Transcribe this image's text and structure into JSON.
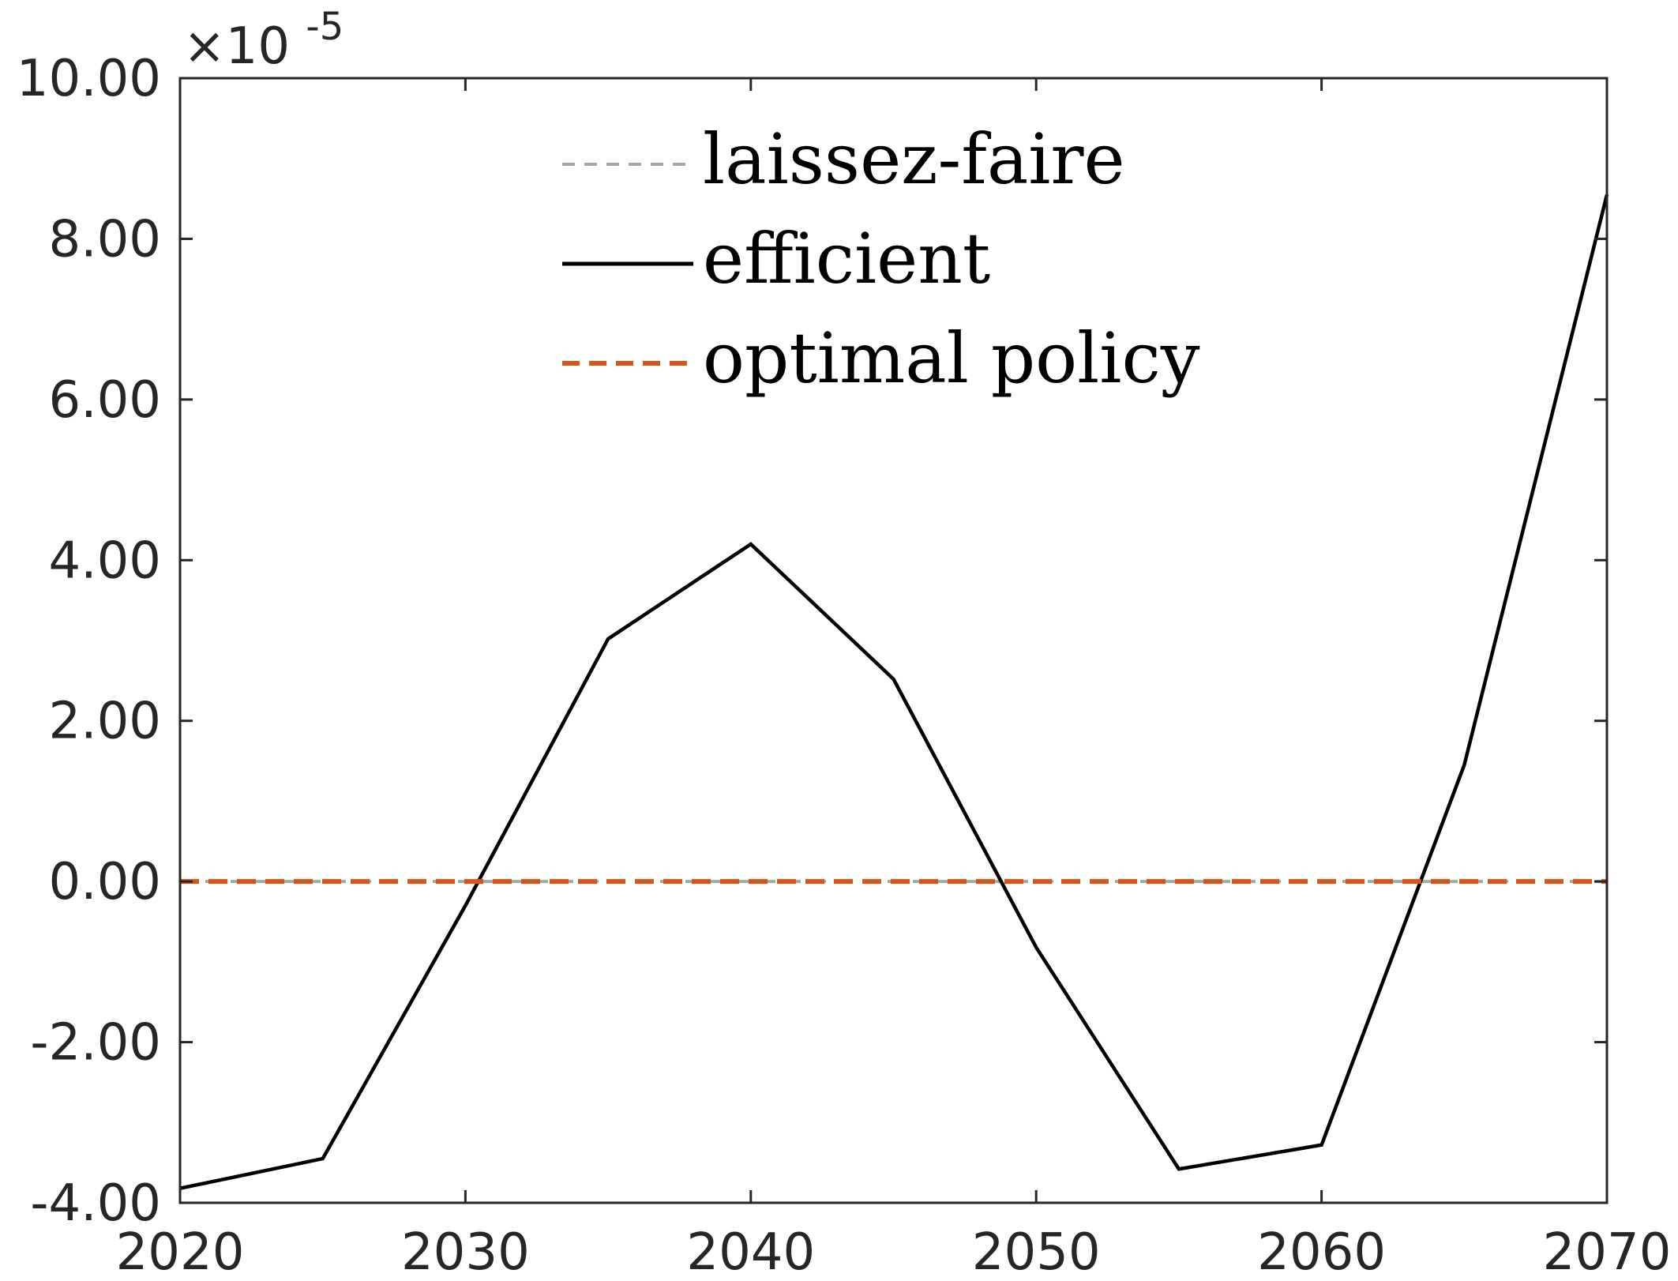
{
  "chart_data": {
    "type": "line",
    "title": "",
    "xlabel": "",
    "ylabel": "",
    "xlim": [
      2020,
      2070
    ],
    "ylim": [
      -4,
      10
    ],
    "y_exponent_label": {
      "times": "×10",
      "power": "-5"
    },
    "x_ticks": [
      2020,
      2030,
      2040,
      2050,
      2060,
      2070
    ],
    "x_tick_labels": [
      "2020",
      "2030",
      "2040",
      "2050",
      "2060",
      "2070"
    ],
    "y_ticks": [
      -4,
      -2,
      0,
      2,
      4,
      6,
      8,
      10
    ],
    "y_tick_labels": [
      "-4.00",
      "-2.00",
      "0.00",
      "2.00",
      "4.00",
      "6.00",
      "8.00",
      "10.00"
    ],
    "grid": false,
    "legend_position": "top-center",
    "series": [
      {
        "name": "laissez-faire",
        "style": "dashed",
        "color": "#a6a6a6",
        "x": [
          2020,
          2025,
          2030,
          2035,
          2040,
          2045,
          2050,
          2055,
          2060,
          2065,
          2070
        ],
        "y": [
          0,
          0,
          0,
          0,
          0,
          0,
          0,
          0,
          0,
          0,
          0
        ]
      },
      {
        "name": "efficient",
        "style": "solid",
        "color": "#000000",
        "x": [
          2020,
          2025,
          2030,
          2035,
          2040,
          2045,
          2050,
          2055,
          2060,
          2065,
          2070
        ],
        "y": [
          -3.82,
          -3.45,
          -0.3,
          3.02,
          4.2,
          2.52,
          -0.82,
          -3.58,
          -3.28,
          1.45,
          8.55
        ]
      },
      {
        "name": "optimal policy",
        "style": "dashed",
        "color": "#d95319",
        "x": [
          2020,
          2025,
          2030,
          2035,
          2040,
          2045,
          2050,
          2055,
          2060,
          2065,
          2070
        ],
        "y": [
          0,
          0,
          0,
          0,
          0,
          0,
          0,
          0,
          0,
          0,
          0
        ]
      }
    ]
  }
}
